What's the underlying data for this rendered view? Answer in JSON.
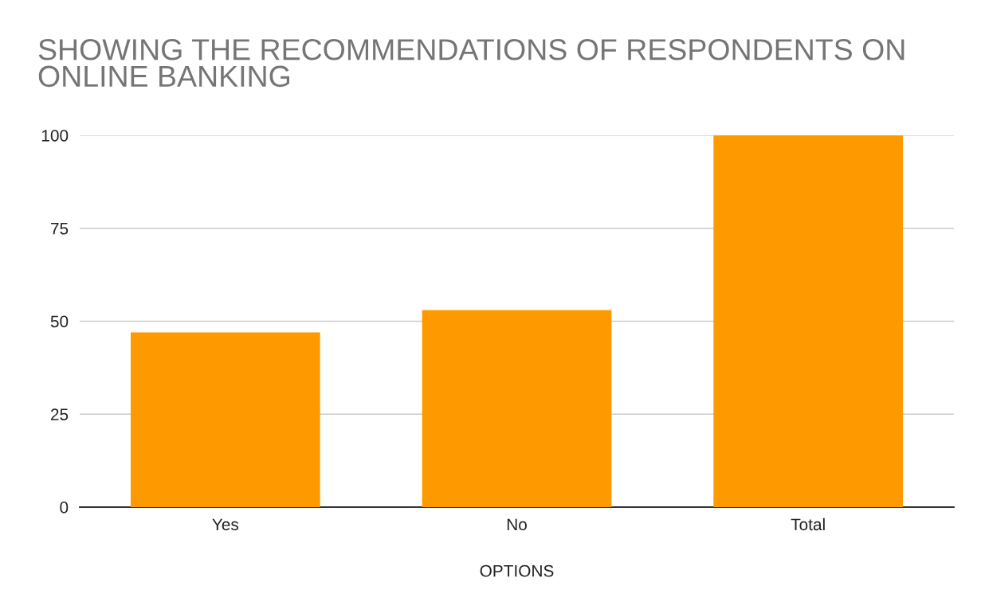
{
  "chart_data": {
    "type": "bar",
    "title": "SHOWING THE RECOMMENDATIONS OF RESPONDENTS ON ONLINE BANKING",
    "xlabel": "OPTIONS",
    "categories": [
      "Yes",
      "No",
      "Total"
    ],
    "values": [
      47,
      53,
      100
    ],
    "color": "#ff9900",
    "ylim": [
      0,
      100
    ],
    "yticks": [
      0,
      25,
      50,
      75,
      100
    ],
    "grid": "y",
    "legend": false
  }
}
